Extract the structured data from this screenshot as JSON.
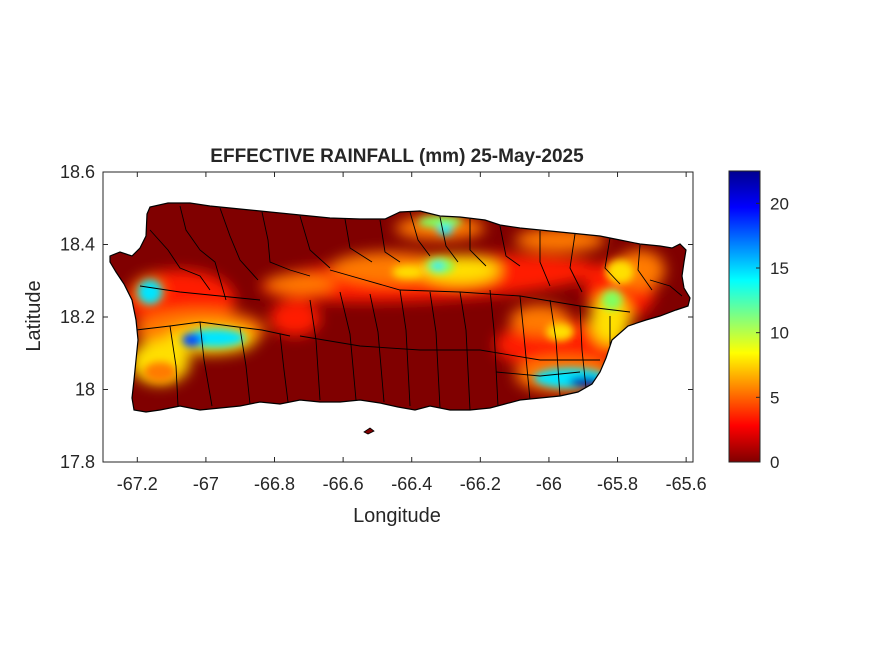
{
  "figure": {
    "title": "EFFECTIVE RAINFALL (mm) 25-May-2025",
    "xlabel": "Longitude",
    "ylabel": "Latitude"
  },
  "map": {
    "region": "Puerto Rico",
    "variable": "Effective rainfall",
    "units": "mm",
    "date": "25-May-2025",
    "xlim": [
      -67.3,
      -65.58
    ],
    "ylim": [
      17.8,
      18.6
    ],
    "xticks": [
      -67.2,
      -67,
      -66.8,
      -66.6,
      -66.4,
      -66.2,
      -66,
      -65.8,
      -65.6
    ],
    "xtick_labels": [
      "-67.2",
      "-67",
      "-66.8",
      "-66.6",
      "-66.4",
      "-66.2",
      "-66",
      "-65.8",
      "-65.6"
    ],
    "yticks": [
      17.8,
      18,
      18.2,
      18.4,
      18.6
    ],
    "ytick_labels": [
      "17.8",
      "18",
      "18.2",
      "18.4",
      "18.6"
    ],
    "colormap": "jet",
    "colors": {
      "land_base": "#800000",
      "outline": "#000000",
      "colormap_stops": [
        "#800000",
        "#ff0000",
        "#ff8000",
        "#ffff00",
        "#80ff80",
        "#00ffff",
        "#0080ff",
        "#0000ff",
        "#000090"
      ]
    }
  },
  "colorbar": {
    "range": [
      0,
      22.5
    ],
    "ticks": [
      0,
      5,
      10,
      15,
      20
    ],
    "tick_labels": [
      "0",
      "5",
      "10",
      "15",
      "20"
    ]
  }
}
